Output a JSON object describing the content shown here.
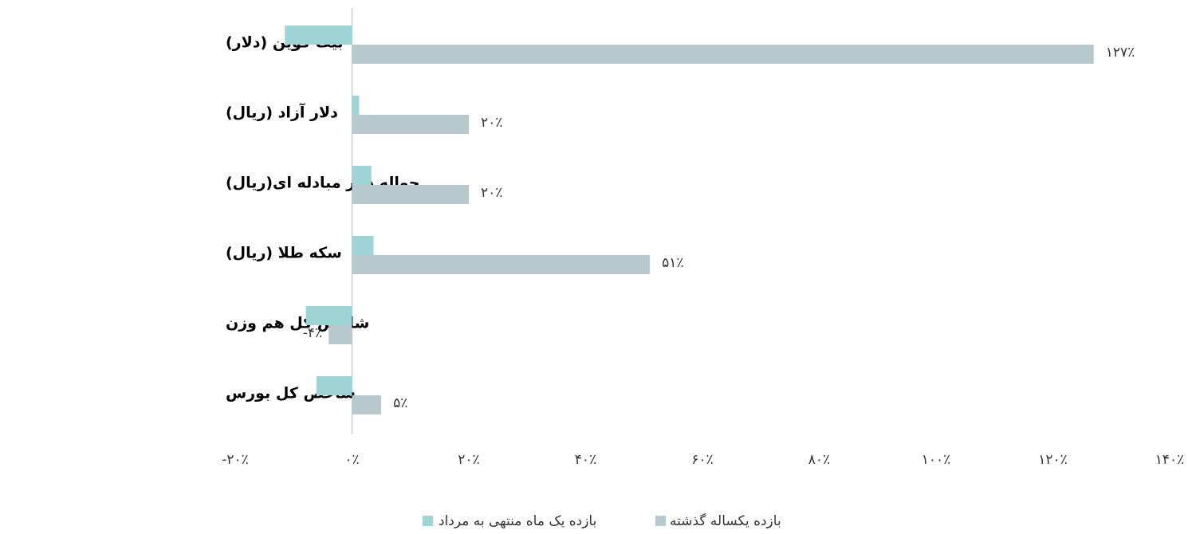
{
  "chart_data": {
    "type": "hbar",
    "categories": [
      "بیت کوین (دلار)",
      "دلار آزاد (ریال)",
      "حواله دلار مبادله ای(ریال)",
      "سکه طلا (ریال)",
      "شاخص کل هم وزن",
      "شاخص کل بورس"
    ],
    "series": [
      {
        "name": "بازده یک ماه منتهی به مرداد",
        "color": "#9fd4d6",
        "values": [
          -11.5,
          1.2,
          3.3,
          3.7,
          -7.9,
          -6.1
        ]
      },
      {
        "name": "بازده یکساله گذشته",
        "color": "#b8c8cf",
        "values": [
          127,
          20,
          20,
          51,
          -4,
          5
        ],
        "value_labels": [
          "۱۲۷٪",
          "۲۰٪",
          "۲۰٪",
          "۵۱٪",
          "-۴٪",
          "۵٪"
        ]
      }
    ],
    "xlim": [
      -20,
      140
    ],
    "xticks": [
      {
        "value": -20,
        "label": "-۲۰٪"
      },
      {
        "value": 0,
        "label": "۰٪"
      },
      {
        "value": 20,
        "label": "۲۰٪"
      },
      {
        "value": 40,
        "label": "۴۰٪"
      },
      {
        "value": 60,
        "label": "۶۰٪"
      },
      {
        "value": 80,
        "label": "۸۰٪"
      },
      {
        "value": 100,
        "label": "۱۰۰٪"
      },
      {
        "value": 120,
        "label": "۱۲۰٪"
      },
      {
        "value": 140,
        "label": "۱۴۰٪"
      }
    ],
    "legend": "bottom",
    "grid": false
  }
}
